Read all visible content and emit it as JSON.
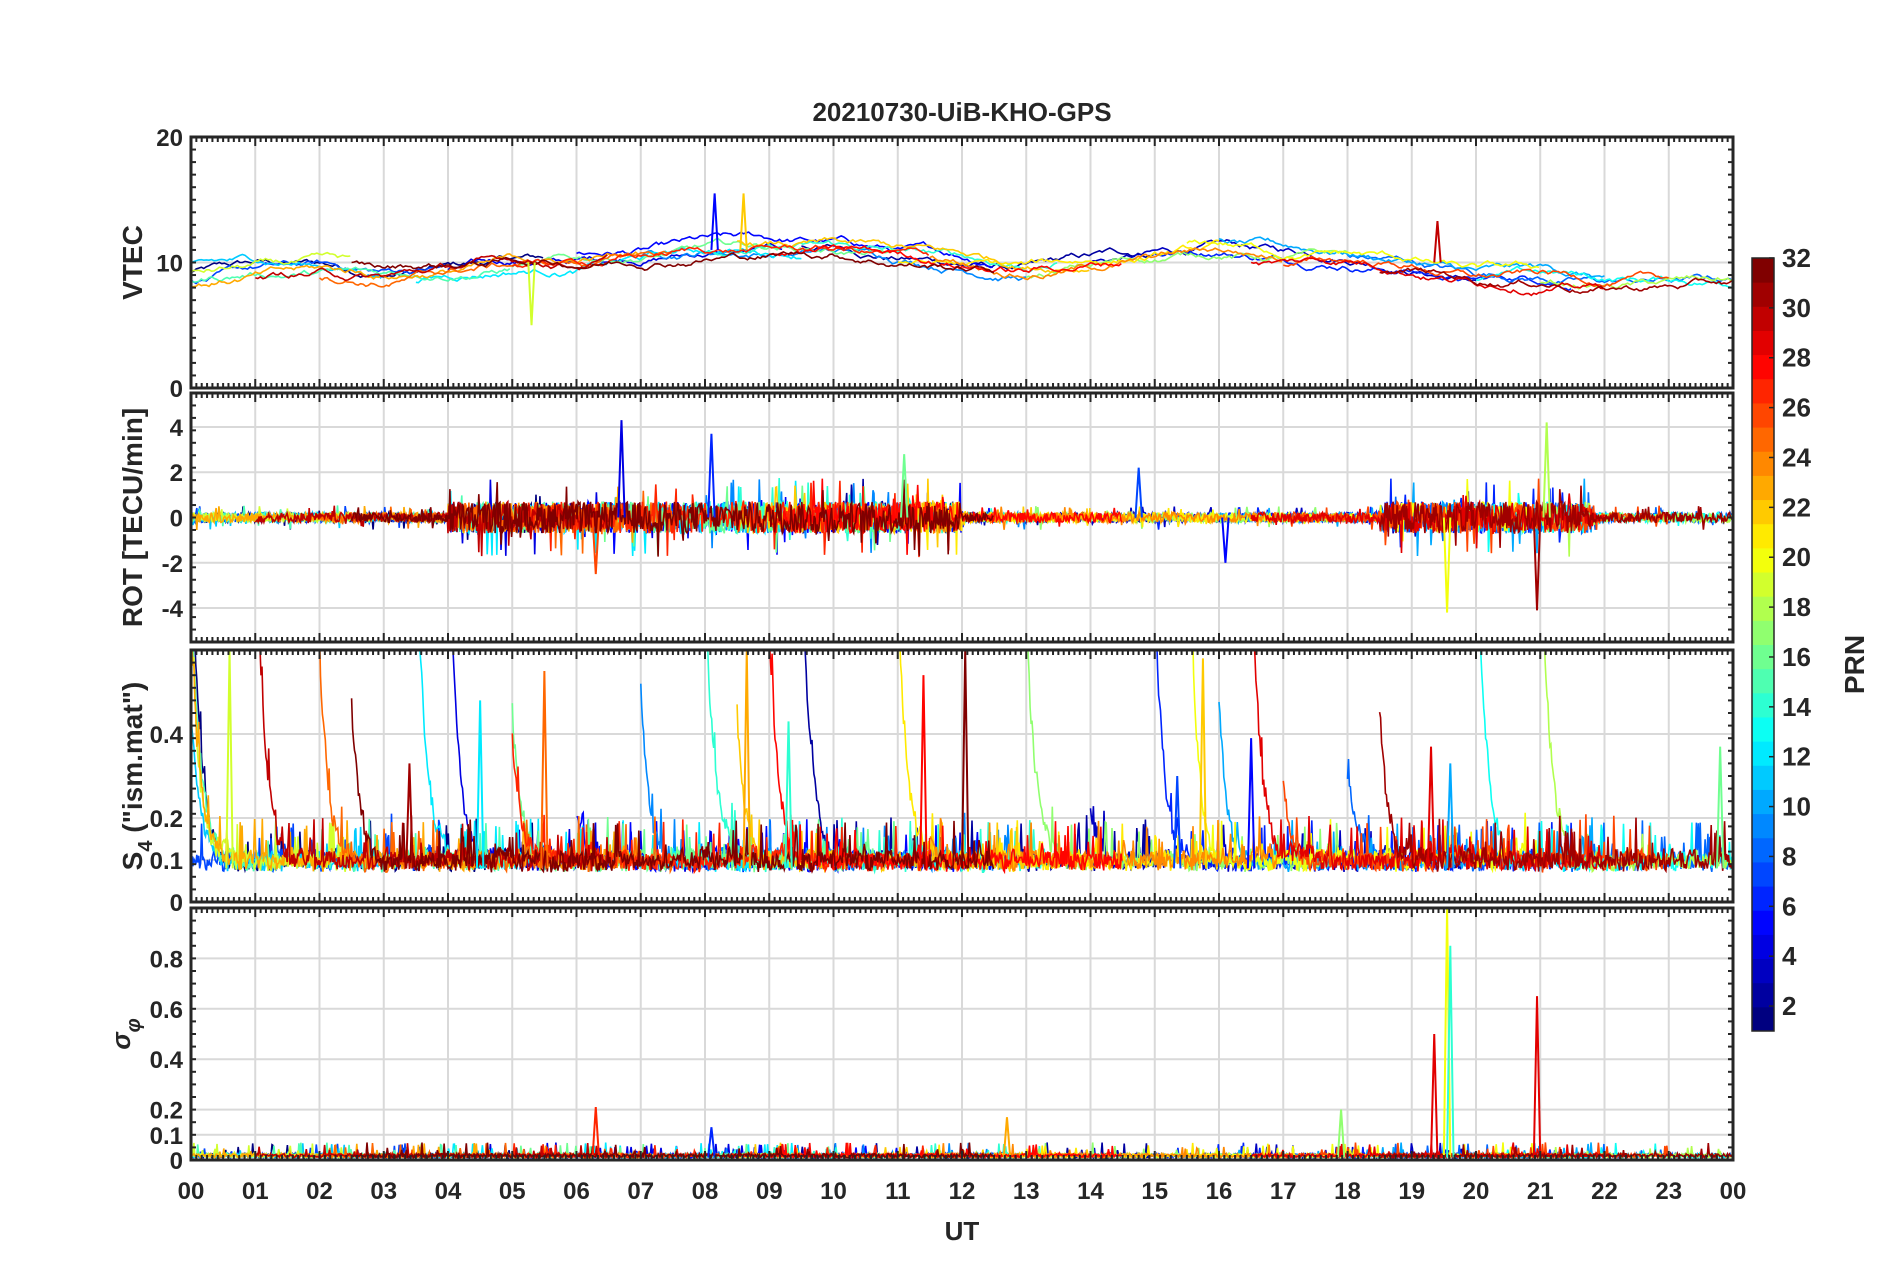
{
  "chart_data": {
    "type": "line",
    "title": "20210730-UiB-KHO-GPS",
    "xlabel": "UT",
    "xlim": [
      0,
      24
    ],
    "x_tick_labels": [
      "00",
      "01",
      "02",
      "03",
      "04",
      "05",
      "06",
      "07",
      "08",
      "09",
      "10",
      "11",
      "12",
      "13",
      "14",
      "15",
      "16",
      "17",
      "18",
      "19",
      "20",
      "21",
      "22",
      "23",
      "00"
    ],
    "grid": true,
    "colorbar": {
      "label": "PRN",
      "range": [
        1,
        32
      ],
      "ticks": [
        "2",
        "4",
        "6",
        "8",
        "10",
        "12",
        "14",
        "16",
        "18",
        "20",
        "22",
        "24",
        "26",
        "28",
        "30",
        "32"
      ],
      "colormap": "jet"
    },
    "passes": [
      {
        "prn": 1,
        "start": 0,
        "end": 5.5
      },
      {
        "prn": 2,
        "start": 9.5,
        "end": 15
      },
      {
        "prn": 3,
        "start": 14,
        "end": 20
      },
      {
        "prn": 4,
        "start": 4,
        "end": 9.2
      },
      {
        "prn": 5,
        "start": 6,
        "end": 12.5
      },
      {
        "prn": 6,
        "start": 15,
        "end": 21.5
      },
      {
        "prn": 7,
        "start": 0,
        "end": 4
      },
      {
        "prn": 8,
        "start": 18,
        "end": 24
      },
      {
        "prn": 9,
        "start": 7,
        "end": 13
      },
      {
        "prn": 10,
        "start": 16,
        "end": 22
      },
      {
        "prn": 11,
        "start": 0,
        "end": 3
      },
      {
        "prn": 12,
        "start": 3.5,
        "end": 9.5
      },
      {
        "prn": 13,
        "start": 20,
        "end": 24
      },
      {
        "prn": 14,
        "start": 8,
        "end": 13.5
      },
      {
        "prn": 15,
        "start": 0,
        "end": 5
      },
      {
        "prn": 16,
        "start": 5,
        "end": 11
      },
      {
        "prn": 17,
        "start": 13,
        "end": 18
      },
      {
        "prn": 18,
        "start": 21,
        "end": 24
      },
      {
        "prn": 19,
        "start": 0,
        "end": 2.5
      },
      {
        "prn": 20,
        "start": 15.5,
        "end": 21
      },
      {
        "prn": 21,
        "start": 11,
        "end": 16
      },
      {
        "prn": 22,
        "start": 8.5,
        "end": 14
      },
      {
        "prn": 23,
        "start": 0,
        "end": 7
      },
      {
        "prn": 24,
        "start": 11.5,
        "end": 17
      },
      {
        "prn": 25,
        "start": 2,
        "end": 7.5
      },
      {
        "prn": 26,
        "start": 17,
        "end": 23
      },
      {
        "prn": 27,
        "start": 5,
        "end": 11.5
      },
      {
        "prn": 28,
        "start": 9,
        "end": 14.5
      },
      {
        "prn": 29,
        "start": 16.5,
        "end": 22
      },
      {
        "prn": 30,
        "start": 1,
        "end": 6.5
      },
      {
        "prn": 31,
        "start": 18.5,
        "end": 24
      },
      {
        "prn": 32,
        "start": 2.5,
        "end": 12.5
      }
    ],
    "panels": [
      {
        "ylabel": "VTEC",
        "ylim": [
          0,
          20
        ],
        "y_ticks": [
          0,
          10,
          20
        ],
        "y_tick_labels": [
          "0",
          "10",
          "20"
        ],
        "hourly_median": [
          9,
          9.5,
          9.5,
          9,
          9.5,
          10,
          10,
          10.5,
          11,
          11,
          11,
          10.5,
          10,
          9.5,
          10,
          10.5,
          11,
          10.5,
          10.5,
          10,
          9,
          9,
          8.5,
          8.5,
          8.5
        ],
        "spikes": [
          {
            "prn": 5,
            "t": 8.15,
            "v": 15.5
          },
          {
            "prn": 22,
            "t": 8.6,
            "v": 15.5
          },
          {
            "prn": 30,
            "t": 19.4,
            "v": 13.3
          },
          {
            "prn": 19,
            "t": 5.3,
            "v": 5
          }
        ]
      },
      {
        "ylabel": "ROT [TECU/min]",
        "ylim": [
          -5.5,
          5.5
        ],
        "y_ticks": [
          -4,
          -2,
          0,
          2,
          4
        ],
        "y_tick_labels": [
          "-4",
          "-2",
          "0",
          "2",
          "4"
        ],
        "spikes": [
          {
            "prn": 4,
            "t": 6.7,
            "v": 4.3
          },
          {
            "prn": 6,
            "t": 8.1,
            "v": 3.7
          },
          {
            "prn": 18,
            "t": 21.1,
            "v": 4.2
          },
          {
            "prn": 31,
            "t": 20.95,
            "v": -4.1
          },
          {
            "prn": 20,
            "t": 19.55,
            "v": -4.2
          },
          {
            "prn": 26,
            "t": 6.3,
            "v": -2.5
          },
          {
            "prn": 16,
            "t": 11.1,
            "v": 2.8
          },
          {
            "prn": 7,
            "t": 14.75,
            "v": 2.2
          },
          {
            "prn": 5,
            "t": 16.1,
            "v": -2
          }
        ]
      },
      {
        "ylabel": "S",
        "ylabel_sub": "4",
        "ylabel_suffix": " (\"ism.mat\")",
        "ylim": [
          0,
          0.6
        ],
        "y_ticks": [
          0,
          0.1,
          0.2,
          0.4
        ],
        "y_tick_labels": [
          "0",
          "0.1",
          "0.2",
          "0.4"
        ],
        "spikes": [
          {
            "prn": 19,
            "t": 0.6,
            "v": 0.6
          },
          {
            "prn": 12,
            "t": 4.5,
            "v": 0.48
          },
          {
            "prn": 25,
            "t": 5.5,
            "v": 0.55
          },
          {
            "prn": 23,
            "t": 8.65,
            "v": 0.6
          },
          {
            "prn": 28,
            "t": 11.4,
            "v": 0.54
          },
          {
            "prn": 32,
            "t": 12.05,
            "v": 0.6
          },
          {
            "prn": 22,
            "t": 15.75,
            "v": 0.58
          },
          {
            "prn": 5,
            "t": 16.5,
            "v": 0.39
          },
          {
            "prn": 29,
            "t": 19.3,
            "v": 0.37
          },
          {
            "prn": 10,
            "t": 19.6,
            "v": 0.33
          },
          {
            "prn": 16,
            "t": 23.8,
            "v": 0.37
          },
          {
            "prn": 14,
            "t": 9.3,
            "v": 0.43
          },
          {
            "prn": 31,
            "t": 3.4,
            "v": 0.33
          },
          {
            "prn": 7,
            "t": 15.35,
            "v": 0.3
          }
        ]
      },
      {
        "ylabel": "σ",
        "ylabel_sub": "φ",
        "ylim": [
          0,
          1
        ],
        "y_ticks": [
          0,
          0.1,
          0.2,
          0.4,
          0.6,
          0.8
        ],
        "y_tick_labels": [
          "0",
          "0.1",
          "0.2",
          "0.4",
          "0.6",
          "0.8"
        ],
        "spikes": [
          {
            "prn": 20,
            "t": 19.55,
            "v": 1.0
          },
          {
            "prn": 14,
            "t": 19.6,
            "v": 0.85
          },
          {
            "prn": 29,
            "t": 19.35,
            "v": 0.5
          },
          {
            "prn": 29,
            "t": 20.95,
            "v": 0.65
          },
          {
            "prn": 27,
            "t": 6.3,
            "v": 0.21
          },
          {
            "prn": 23,
            "t": 12.7,
            "v": 0.17
          },
          {
            "prn": 17,
            "t": 17.9,
            "v": 0.2
          },
          {
            "prn": 6,
            "t": 8.1,
            "v": 0.13
          }
        ]
      }
    ]
  }
}
